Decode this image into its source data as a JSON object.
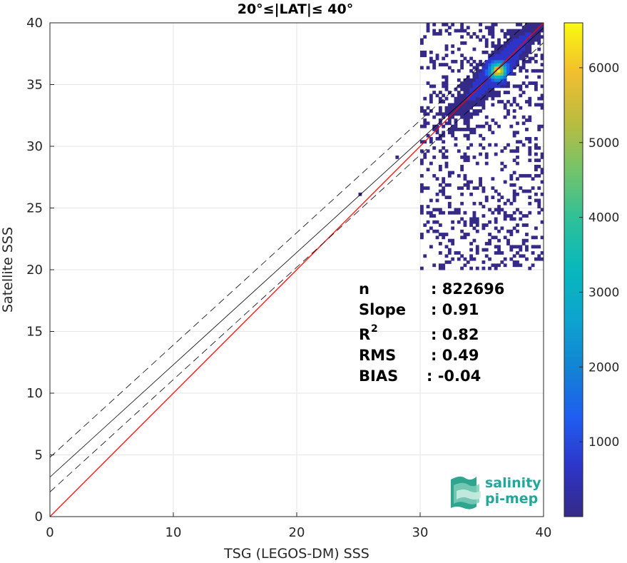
{
  "chart_data": {
    "type": "heatmap",
    "title": "20°≤|LAT|≤ 40°",
    "xlabel": "TSG (LEGOS-DM) SSS",
    "ylabel": "Satellite SSS",
    "xlim": [
      0,
      40
    ],
    "ylim": [
      0,
      40
    ],
    "xticks": [
      "0",
      "10",
      "20",
      "30",
      "40"
    ],
    "yticks": [
      "0",
      "5",
      "10",
      "15",
      "20",
      "25",
      "30",
      "35",
      "40"
    ],
    "grid": true,
    "colorbar": {
      "min": 0,
      "max": 6600,
      "ticks": [
        "1000",
        "2000",
        "3000",
        "4000",
        "5000",
        "6000"
      ],
      "colormap": "parula"
    },
    "lines": [
      {
        "name": "1:1",
        "color": "#ff0000",
        "style": "solid",
        "intercept": 0,
        "slope": 1
      },
      {
        "name": "fit",
        "color": "#000000",
        "style": "solid",
        "intercept": 3.2,
        "slope": 0.91
      },
      {
        "name": "fit-upper",
        "color": "#000000",
        "style": "dashed",
        "intercept": 4.8,
        "slope": 0.91
      },
      {
        "name": "fit-lower",
        "color": "#000000",
        "style": "dashed",
        "intercept": 2.0,
        "slope": 0.91
      }
    ],
    "density_peak": {
      "x": 36.2,
      "y": 36.0,
      "value": 6600
    },
    "stats": [
      {
        "label": "n",
        "value": ": 822696"
      },
      {
        "label": "Slope",
        "value": ": 0.91"
      },
      {
        "label": "R",
        "sup": "2",
        "value": ": 0.82"
      },
      {
        "label": "RMS",
        "value": ": 0.49"
      },
      {
        "label": "BIAS",
        "value": ": -0.04"
      }
    ]
  },
  "logo": {
    "line1": "salinity",
    "line2": "pi-mep"
  }
}
